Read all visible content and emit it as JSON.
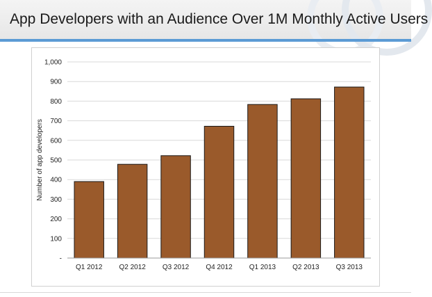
{
  "slide": {
    "title": "App Developers with an Audience Over 1M Monthly Active Users"
  },
  "colors": {
    "bar_fill": "#9a5a2b",
    "bar_stroke": "#1a1a1a",
    "title_rule": "#5b9bd5",
    "gridline": "#d9d9d9"
  },
  "chart_data": {
    "type": "bar",
    "title": "",
    "xlabel": "",
    "ylabel": "Number of app developers",
    "categories": [
      "Q1 2012",
      "Q2 2012",
      "Q3 2012",
      "Q4 2012",
      "Q1 2013",
      "Q2 2013",
      "Q3 2013"
    ],
    "values": [
      390,
      478,
      522,
      672,
      783,
      812,
      872
    ],
    "ylim": [
      0,
      1000
    ],
    "yticks": [
      0,
      100,
      200,
      300,
      400,
      500,
      600,
      700,
      800,
      900,
      1000
    ],
    "ytick_labels": [
      "-",
      "100",
      "200",
      "300",
      "400",
      "500",
      "600",
      "700",
      "800",
      "900",
      "1,000"
    ],
    "grid": true,
    "legend": "none"
  }
}
